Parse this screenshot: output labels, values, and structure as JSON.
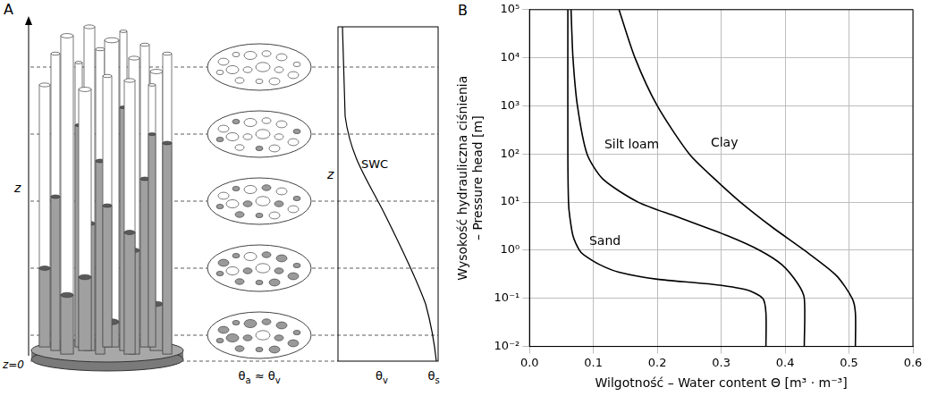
{
  "diagram": {
    "panel": "A",
    "axis_label": "z",
    "origin_label": "z=0",
    "cross_section_label": "θa ≈ θv",
    "profile": {
      "axis_label": "z",
      "curve_label": "SWC",
      "x_labels": [
        "θv",
        "θs"
      ]
    }
  },
  "chart_data": {
    "panel": "B",
    "type": "line",
    "x_label": "Wilgotność – Water content Θ [m³ · m⁻³]",
    "y_label": "Wysokość hydrauliczna ciśnienia – Pressure head [m]",
    "log": "y",
    "grid": true,
    "xlim": [
      0,
      0.6
    ],
    "xticks": [
      {
        "value": 0,
        "label": "0.0"
      },
      0.1,
      0.2,
      0.3,
      0.4,
      0.5,
      0.6
    ],
    "ylim": [
      0.01,
      100000
    ],
    "yticks": [
      {
        "value": 0.01,
        "label": "10⁻²"
      },
      {
        "value": 0.1,
        "label": "10⁻¹"
      },
      {
        "value": 1,
        "label": "10⁰"
      },
      {
        "value": 10,
        "label": "10¹"
      },
      {
        "value": 100,
        "label": "10²"
      },
      {
        "value": 1000,
        "label": "10³"
      },
      {
        "value": 10000,
        "label": "10⁴"
      },
      {
        "value": 100000,
        "label": "10⁵"
      }
    ],
    "series": [
      {
        "color": "#000000",
        "x": [
          0.37,
          0.37,
          0.365,
          0.34,
          0.28,
          0.2,
          0.14,
          0.11,
          0.085,
          0.078,
          0.068,
          0.063,
          0.061,
          0.06,
          0.06
        ],
        "values": [
          0.01,
          0.05,
          0.1,
          0.15,
          0.2,
          0.25,
          0.35,
          0.5,
          0.8,
          1,
          2,
          5,
          10,
          100,
          100000
        ]
      },
      {
        "color": "#000000",
        "x": [
          0.43,
          0.43,
          0.42,
          0.395,
          0.36,
          0.31,
          0.23,
          0.17,
          0.115,
          0.09,
          0.075,
          0.068,
          0.065
        ],
        "values": [
          0.01,
          0.1,
          0.2,
          0.5,
          1,
          2,
          5,
          10,
          30,
          100,
          1000,
          10000,
          100000
        ]
      },
      {
        "color": "#000000",
        "x": [
          0.51,
          0.51,
          0.505,
          0.48,
          0.43,
          0.38,
          0.33,
          0.29,
          0.25,
          0.2,
          0.165,
          0.14
        ],
        "values": [
          0.01,
          0.05,
          0.1,
          0.3,
          1,
          3,
          10,
          30,
          100,
          1000,
          10000,
          100000
        ]
      }
    ],
    "annotations": [
      {
        "text": "Sand",
        "x": 0.118,
        "y": 1.5
      },
      {
        "text": "Silt loam",
        "x": 0.16,
        "y": 150
      },
      {
        "text": "Clay",
        "x": 0.305,
        "y": 170
      }
    ]
  }
}
